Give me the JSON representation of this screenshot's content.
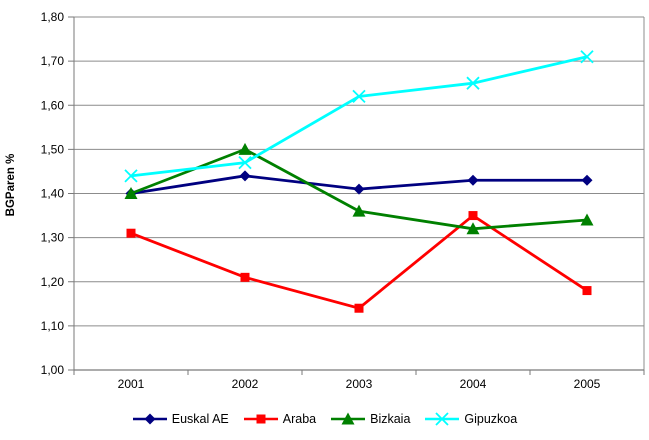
{
  "chart_data": {
    "type": "line",
    "title": "",
    "xlabel": "",
    "ylabel": "BGParen %",
    "categories": [
      "2001",
      "2002",
      "2003",
      "2004",
      "2005"
    ],
    "ylim": [
      1.0,
      1.8
    ],
    "ytick_step": 0.1,
    "ytick_labels": [
      "1,00",
      "1,10",
      "1,20",
      "1,30",
      "1,40",
      "1,50",
      "1,60",
      "1,70",
      "1,80"
    ],
    "grid": true,
    "legend_position": "bottom",
    "series": [
      {
        "name": "Euskal AE",
        "marker": "diamond",
        "color": "#000080",
        "values": [
          1.4,
          1.44,
          1.41,
          1.43,
          1.43
        ]
      },
      {
        "name": "Araba",
        "marker": "square",
        "color": "#FF0000",
        "values": [
          1.31,
          1.21,
          1.14,
          1.35,
          1.18
        ]
      },
      {
        "name": "Bizkaia",
        "marker": "triangle",
        "color": "#008000",
        "values": [
          1.4,
          1.5,
          1.36,
          1.32,
          1.34
        ]
      },
      {
        "name": "Gipuzkoa",
        "marker": "x",
        "color": "#00FFFF",
        "values": [
          1.44,
          1.47,
          1.62,
          1.65,
          1.71
        ]
      }
    ],
    "colors": {
      "gridline": "#8c8c8c",
      "axis": "#7a7a7a",
      "text": "#000000",
      "background": "#FFFFFF"
    }
  }
}
